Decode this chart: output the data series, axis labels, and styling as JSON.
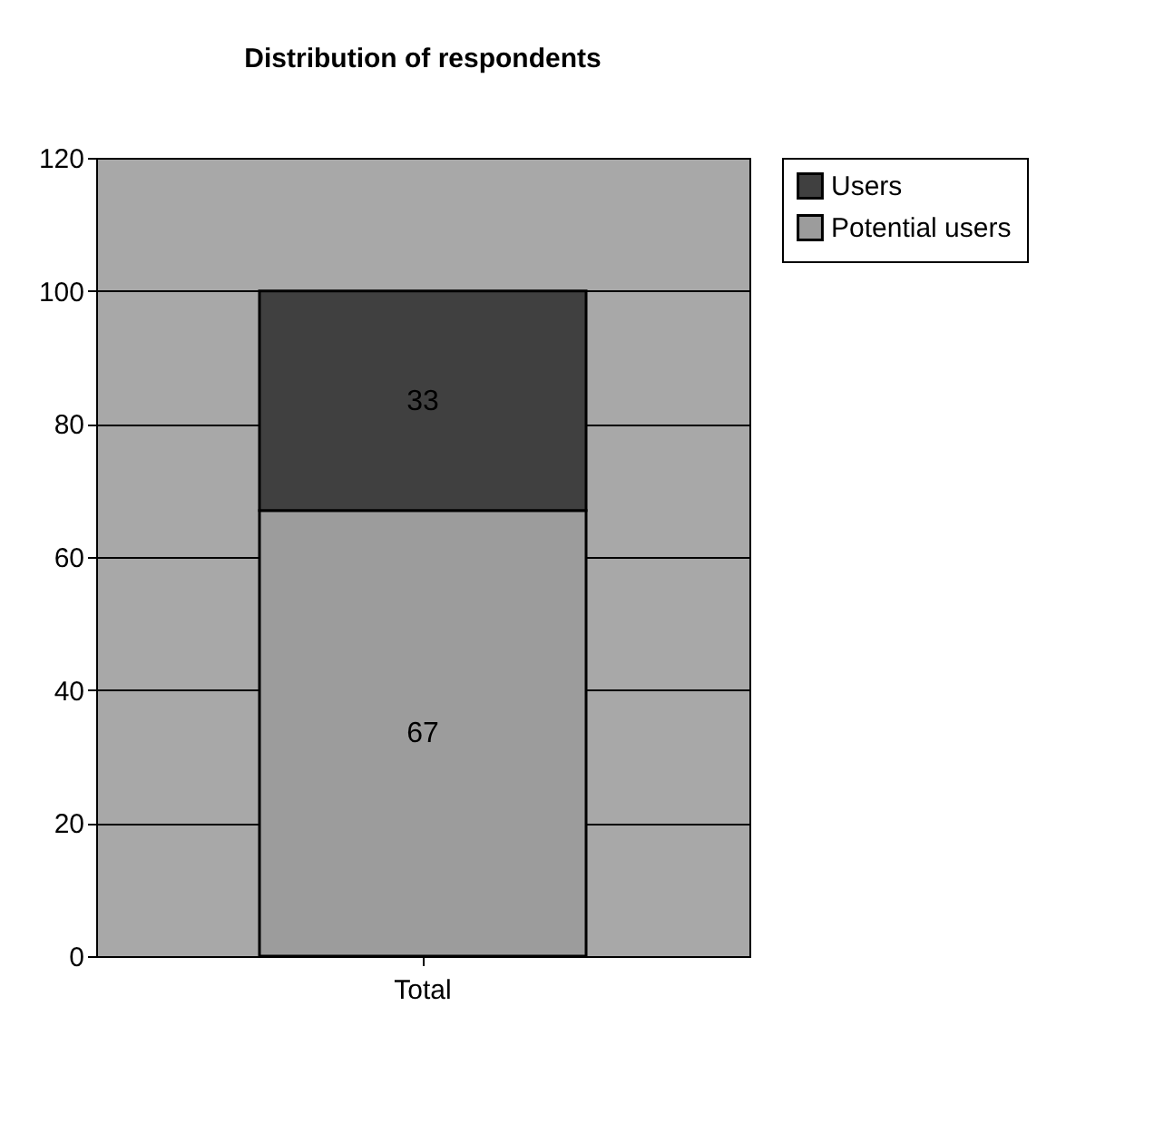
{
  "chart_data": {
    "type": "bar",
    "title": "Distribution of respondents",
    "categories": [
      "Total"
    ],
    "stacked": true,
    "series": [
      {
        "name": "Potential users",
        "color": "#9c9c9c",
        "values": [
          67
        ]
      },
      {
        "name": "Users",
        "color": "#404040",
        "values": [
          33
        ]
      }
    ],
    "ylim": [
      0,
      120
    ],
    "yticks": [
      0,
      20,
      40,
      60,
      80,
      100,
      120
    ],
    "grid": "y",
    "legend": "right",
    "data_labels": true
  }
}
